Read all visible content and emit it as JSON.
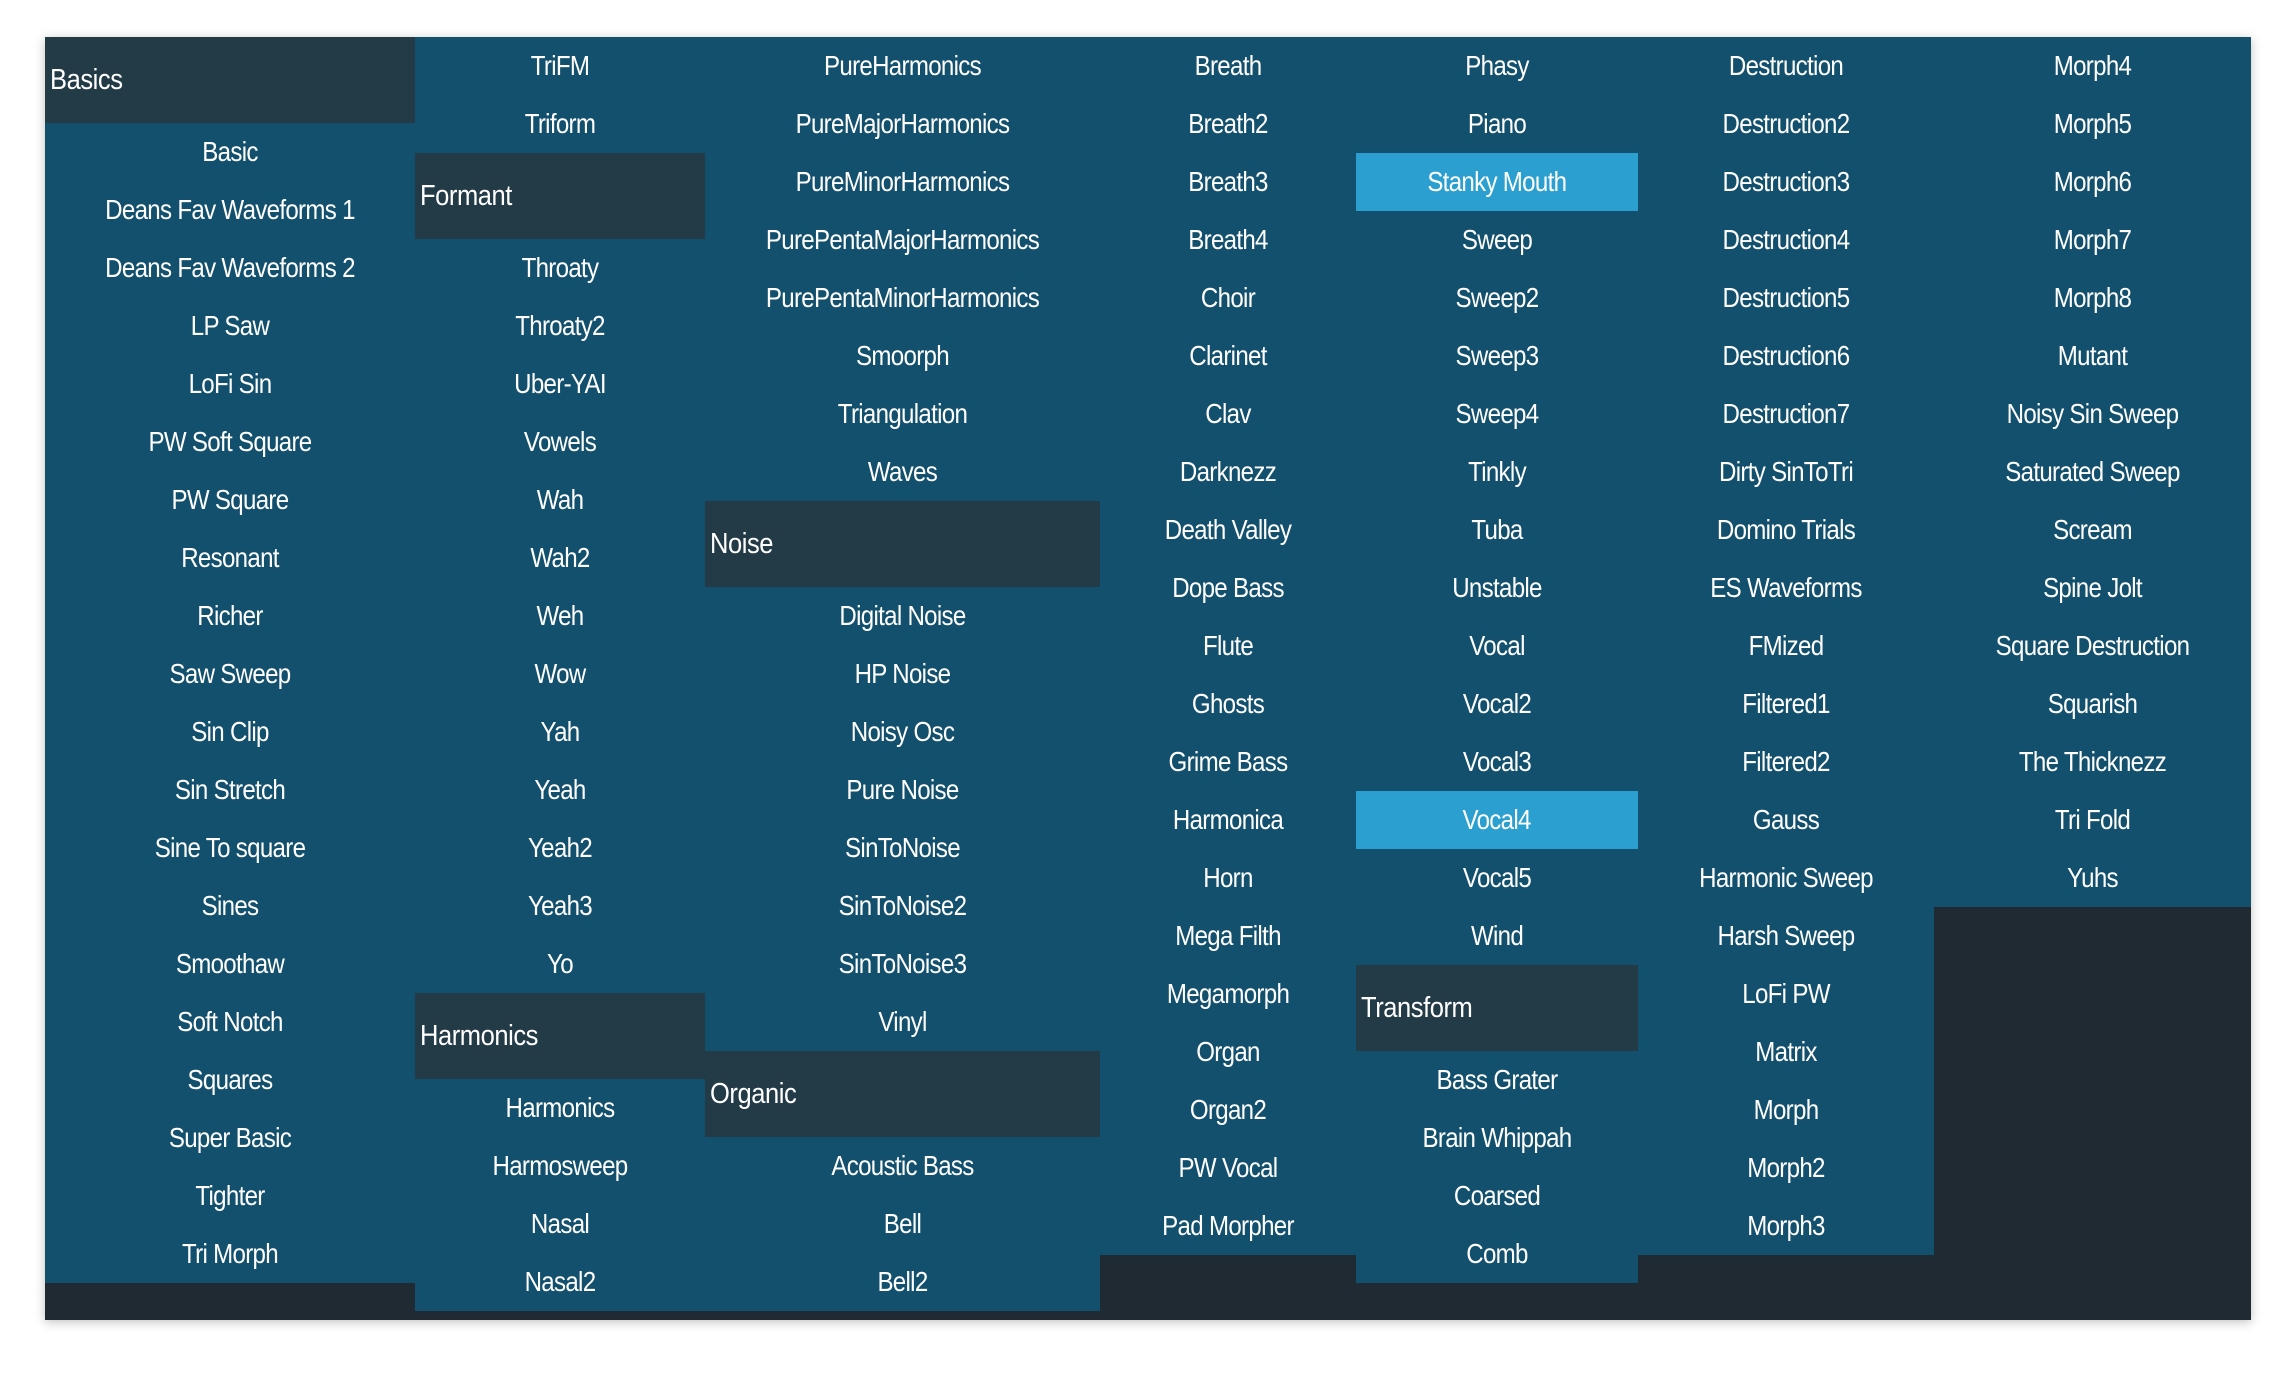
{
  "colors": {
    "panel_bg": "#1f2a33",
    "column_bg": "#13506d",
    "header_bg": "#233a47",
    "selected_bg": "#2a9fd0",
    "text": "#ffffff"
  },
  "columns": [
    {
      "id": "col-1",
      "entries": [
        {
          "type": "header",
          "label": "Basics"
        },
        {
          "type": "item",
          "label": "Basic"
        },
        {
          "type": "item",
          "label": "Deans Fav Waveforms 1"
        },
        {
          "type": "item",
          "label": "Deans Fav Waveforms 2"
        },
        {
          "type": "item",
          "label": "LP Saw"
        },
        {
          "type": "item",
          "label": "LoFi Sin"
        },
        {
          "type": "item",
          "label": "PW Soft Square"
        },
        {
          "type": "item",
          "label": "PW Square"
        },
        {
          "type": "item",
          "label": "Resonant"
        },
        {
          "type": "item",
          "label": "Richer"
        },
        {
          "type": "item",
          "label": "Saw Sweep"
        },
        {
          "type": "item",
          "label": "Sin Clip"
        },
        {
          "type": "item",
          "label": "Sin Stretch"
        },
        {
          "type": "item",
          "label": "Sine To square"
        },
        {
          "type": "item",
          "label": "Sines"
        },
        {
          "type": "item",
          "label": "Smoothaw"
        },
        {
          "type": "item",
          "label": "Soft Notch"
        },
        {
          "type": "item",
          "label": "Squares"
        },
        {
          "type": "item",
          "label": "Super Basic"
        },
        {
          "type": "item",
          "label": "Tighter"
        },
        {
          "type": "item",
          "label": "Tri Morph"
        }
      ]
    },
    {
      "id": "col-2",
      "entries": [
        {
          "type": "item",
          "label": "TriFM"
        },
        {
          "type": "item",
          "label": "Triform"
        },
        {
          "type": "header",
          "label": "Formant"
        },
        {
          "type": "item",
          "label": "Throaty"
        },
        {
          "type": "item",
          "label": "Throaty2"
        },
        {
          "type": "item",
          "label": "Uber-YAI"
        },
        {
          "type": "item",
          "label": "Vowels"
        },
        {
          "type": "item",
          "label": "Wah"
        },
        {
          "type": "item",
          "label": "Wah2"
        },
        {
          "type": "item",
          "label": "Weh"
        },
        {
          "type": "item",
          "label": "Wow"
        },
        {
          "type": "item",
          "label": "Yah"
        },
        {
          "type": "item",
          "label": "Yeah"
        },
        {
          "type": "item",
          "label": "Yeah2"
        },
        {
          "type": "item",
          "label": "Yeah3"
        },
        {
          "type": "item",
          "label": "Yo"
        },
        {
          "type": "header",
          "label": "Harmonics"
        },
        {
          "type": "item",
          "label": "Harmonics"
        },
        {
          "type": "item",
          "label": "Harmosweep"
        },
        {
          "type": "item",
          "label": "Nasal"
        },
        {
          "type": "item",
          "label": "Nasal2"
        }
      ]
    },
    {
      "id": "col-3",
      "entries": [
        {
          "type": "item",
          "label": "PureHarmonics"
        },
        {
          "type": "item",
          "label": "PureMajorHarmonics"
        },
        {
          "type": "item",
          "label": "PureMinorHarmonics"
        },
        {
          "type": "item",
          "label": "PurePentaMajorHarmonics"
        },
        {
          "type": "item",
          "label": "PurePentaMinorHarmonics"
        },
        {
          "type": "item",
          "label": "Smoorph"
        },
        {
          "type": "item",
          "label": "Triangulation"
        },
        {
          "type": "item",
          "label": "Waves"
        },
        {
          "type": "header",
          "label": "Noise"
        },
        {
          "type": "item",
          "label": "Digital Noise"
        },
        {
          "type": "item",
          "label": "HP Noise"
        },
        {
          "type": "item",
          "label": "Noisy Osc"
        },
        {
          "type": "item",
          "label": "Pure Noise"
        },
        {
          "type": "item",
          "label": "SinToNoise"
        },
        {
          "type": "item",
          "label": "SinToNoise2"
        },
        {
          "type": "item",
          "label": "SinToNoise3"
        },
        {
          "type": "item",
          "label": "Vinyl"
        },
        {
          "type": "header",
          "label": "Organic"
        },
        {
          "type": "item",
          "label": "Acoustic Bass"
        },
        {
          "type": "item",
          "label": "Bell"
        },
        {
          "type": "item",
          "label": "Bell2"
        }
      ]
    },
    {
      "id": "col-4",
      "entries": [
        {
          "type": "item",
          "label": "Breath"
        },
        {
          "type": "item",
          "label": "Breath2"
        },
        {
          "type": "item",
          "label": "Breath3"
        },
        {
          "type": "item",
          "label": "Breath4"
        },
        {
          "type": "item",
          "label": "Choir"
        },
        {
          "type": "item",
          "label": "Clarinet"
        },
        {
          "type": "item",
          "label": "Clav"
        },
        {
          "type": "item",
          "label": "Darknezz"
        },
        {
          "type": "item",
          "label": "Death Valley"
        },
        {
          "type": "item",
          "label": "Dope Bass"
        },
        {
          "type": "item",
          "label": "Flute"
        },
        {
          "type": "item",
          "label": "Ghosts"
        },
        {
          "type": "item",
          "label": "Grime Bass"
        },
        {
          "type": "item",
          "label": "Harmonica"
        },
        {
          "type": "item",
          "label": "Horn"
        },
        {
          "type": "item",
          "label": "Mega Filth"
        },
        {
          "type": "item",
          "label": "Megamorph"
        },
        {
          "type": "item",
          "label": "Organ"
        },
        {
          "type": "item",
          "label": "Organ2"
        },
        {
          "type": "item",
          "label": "PW Vocal"
        },
        {
          "type": "item",
          "label": "Pad Morpher"
        }
      ]
    },
    {
      "id": "col-5",
      "entries": [
        {
          "type": "item",
          "label": "Phasy"
        },
        {
          "type": "item",
          "label": "Piano"
        },
        {
          "type": "item",
          "label": "Stanky Mouth",
          "selected": true
        },
        {
          "type": "item",
          "label": "Sweep"
        },
        {
          "type": "item",
          "label": "Sweep2"
        },
        {
          "type": "item",
          "label": "Sweep3"
        },
        {
          "type": "item",
          "label": "Sweep4"
        },
        {
          "type": "item",
          "label": "Tinkly"
        },
        {
          "type": "item",
          "label": "Tuba"
        },
        {
          "type": "item",
          "label": "Unstable"
        },
        {
          "type": "item",
          "label": "Vocal"
        },
        {
          "type": "item",
          "label": "Vocal2"
        },
        {
          "type": "item",
          "label": "Vocal3"
        },
        {
          "type": "item",
          "label": "Vocal4",
          "selected": true
        },
        {
          "type": "item",
          "label": "Vocal5"
        },
        {
          "type": "item",
          "label": "Wind"
        },
        {
          "type": "header",
          "label": "Transform"
        },
        {
          "type": "item",
          "label": "Bass Grater"
        },
        {
          "type": "item",
          "label": "Brain Whippah"
        },
        {
          "type": "item",
          "label": "Coarsed"
        },
        {
          "type": "item",
          "label": "Comb"
        }
      ]
    },
    {
      "id": "col-6",
      "entries": [
        {
          "type": "item",
          "label": "Destruction"
        },
        {
          "type": "item",
          "label": "Destruction2"
        },
        {
          "type": "item",
          "label": "Destruction3"
        },
        {
          "type": "item",
          "label": "Destruction4"
        },
        {
          "type": "item",
          "label": "Destruction5"
        },
        {
          "type": "item",
          "label": "Destruction6"
        },
        {
          "type": "item",
          "label": "Destruction7"
        },
        {
          "type": "item",
          "label": "Dirty SinToTri"
        },
        {
          "type": "item",
          "label": "Domino Trials"
        },
        {
          "type": "item",
          "label": "ES Waveforms"
        },
        {
          "type": "item",
          "label": "FMized"
        },
        {
          "type": "item",
          "label": "Filtered1"
        },
        {
          "type": "item",
          "label": "Filtered2"
        },
        {
          "type": "item",
          "label": "Gauss"
        },
        {
          "type": "item",
          "label": "Harmonic Sweep"
        },
        {
          "type": "item",
          "label": "Harsh Sweep"
        },
        {
          "type": "item",
          "label": "LoFi PW"
        },
        {
          "type": "item",
          "label": "Matrix"
        },
        {
          "type": "item",
          "label": "Morph"
        },
        {
          "type": "item",
          "label": "Morph2"
        },
        {
          "type": "item",
          "label": "Morph3"
        }
      ]
    },
    {
      "id": "col-7",
      "entries": [
        {
          "type": "item",
          "label": "Morph4"
        },
        {
          "type": "item",
          "label": "Morph5"
        },
        {
          "type": "item",
          "label": "Morph6"
        },
        {
          "type": "item",
          "label": "Morph7"
        },
        {
          "type": "item",
          "label": "Morph8"
        },
        {
          "type": "item",
          "label": "Mutant"
        },
        {
          "type": "item",
          "label": "Noisy Sin Sweep"
        },
        {
          "type": "item",
          "label": "Saturated Sweep"
        },
        {
          "type": "item",
          "label": "Scream"
        },
        {
          "type": "item",
          "label": "Spine Jolt"
        },
        {
          "type": "item",
          "label": "Square Destruction"
        },
        {
          "type": "item",
          "label": "Squarish"
        },
        {
          "type": "item",
          "label": "The Thicknezz"
        },
        {
          "type": "item",
          "label": "Tri Fold"
        },
        {
          "type": "item",
          "label": "Yuhs"
        }
      ]
    }
  ]
}
